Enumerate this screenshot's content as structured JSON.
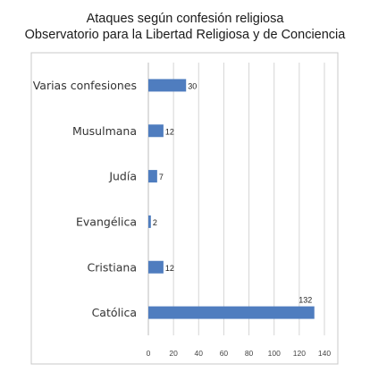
{
  "chart_data": {
    "type": "bar",
    "orientation": "horizontal",
    "title": "Ataques según confesión religiosa",
    "subtitle": "Observatorio para la Libertad Religiosa y de Conciencia",
    "categories": [
      "Varias confesiones",
      "Musulmana",
      "Judía",
      "Evangélica",
      "Cristiana",
      "Católica"
    ],
    "values": [
      30,
      12,
      7,
      2,
      12,
      132
    ],
    "xlim": [
      0,
      140
    ],
    "xticks": [
      0,
      20,
      40,
      60,
      80,
      100,
      120,
      140
    ],
    "grid": true,
    "data_labels": true,
    "bar_color": "#4f7dbf"
  }
}
